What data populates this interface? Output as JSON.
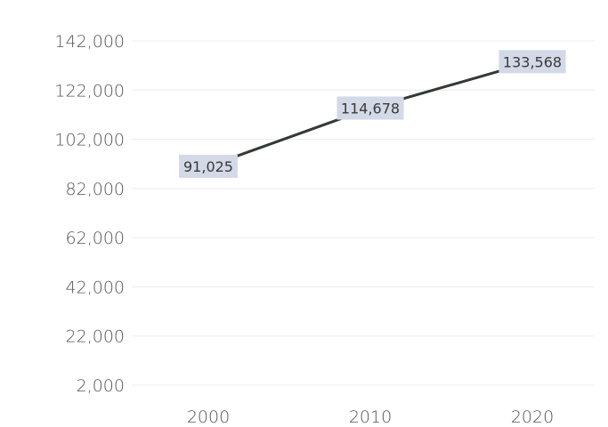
{
  "chart_data": {
    "type": "line",
    "title": "",
    "xlabel": "",
    "ylabel": "",
    "categories": [
      "2000",
      "2010",
      "2020"
    ],
    "series": [
      {
        "values": [
          91025,
          114678,
          133568
        ]
      }
    ],
    "data_labels": [
      "91,025",
      "114,678",
      "133,568"
    ],
    "y_ticks": [
      2000,
      22000,
      42000,
      62000,
      82000,
      102000,
      122000,
      142000
    ],
    "y_tick_labels": [
      "2,000",
      "22,000",
      "42,000",
      "62,000",
      "82,000",
      "102,000",
      "122,000",
      "142,000"
    ],
    "ylim": [
      2000,
      142000
    ],
    "grid": true,
    "legend": "none",
    "colors": {
      "line": "#333a33",
      "label_bg": "#d3d9e6",
      "grid": "#ececec",
      "text": "#555555"
    }
  }
}
